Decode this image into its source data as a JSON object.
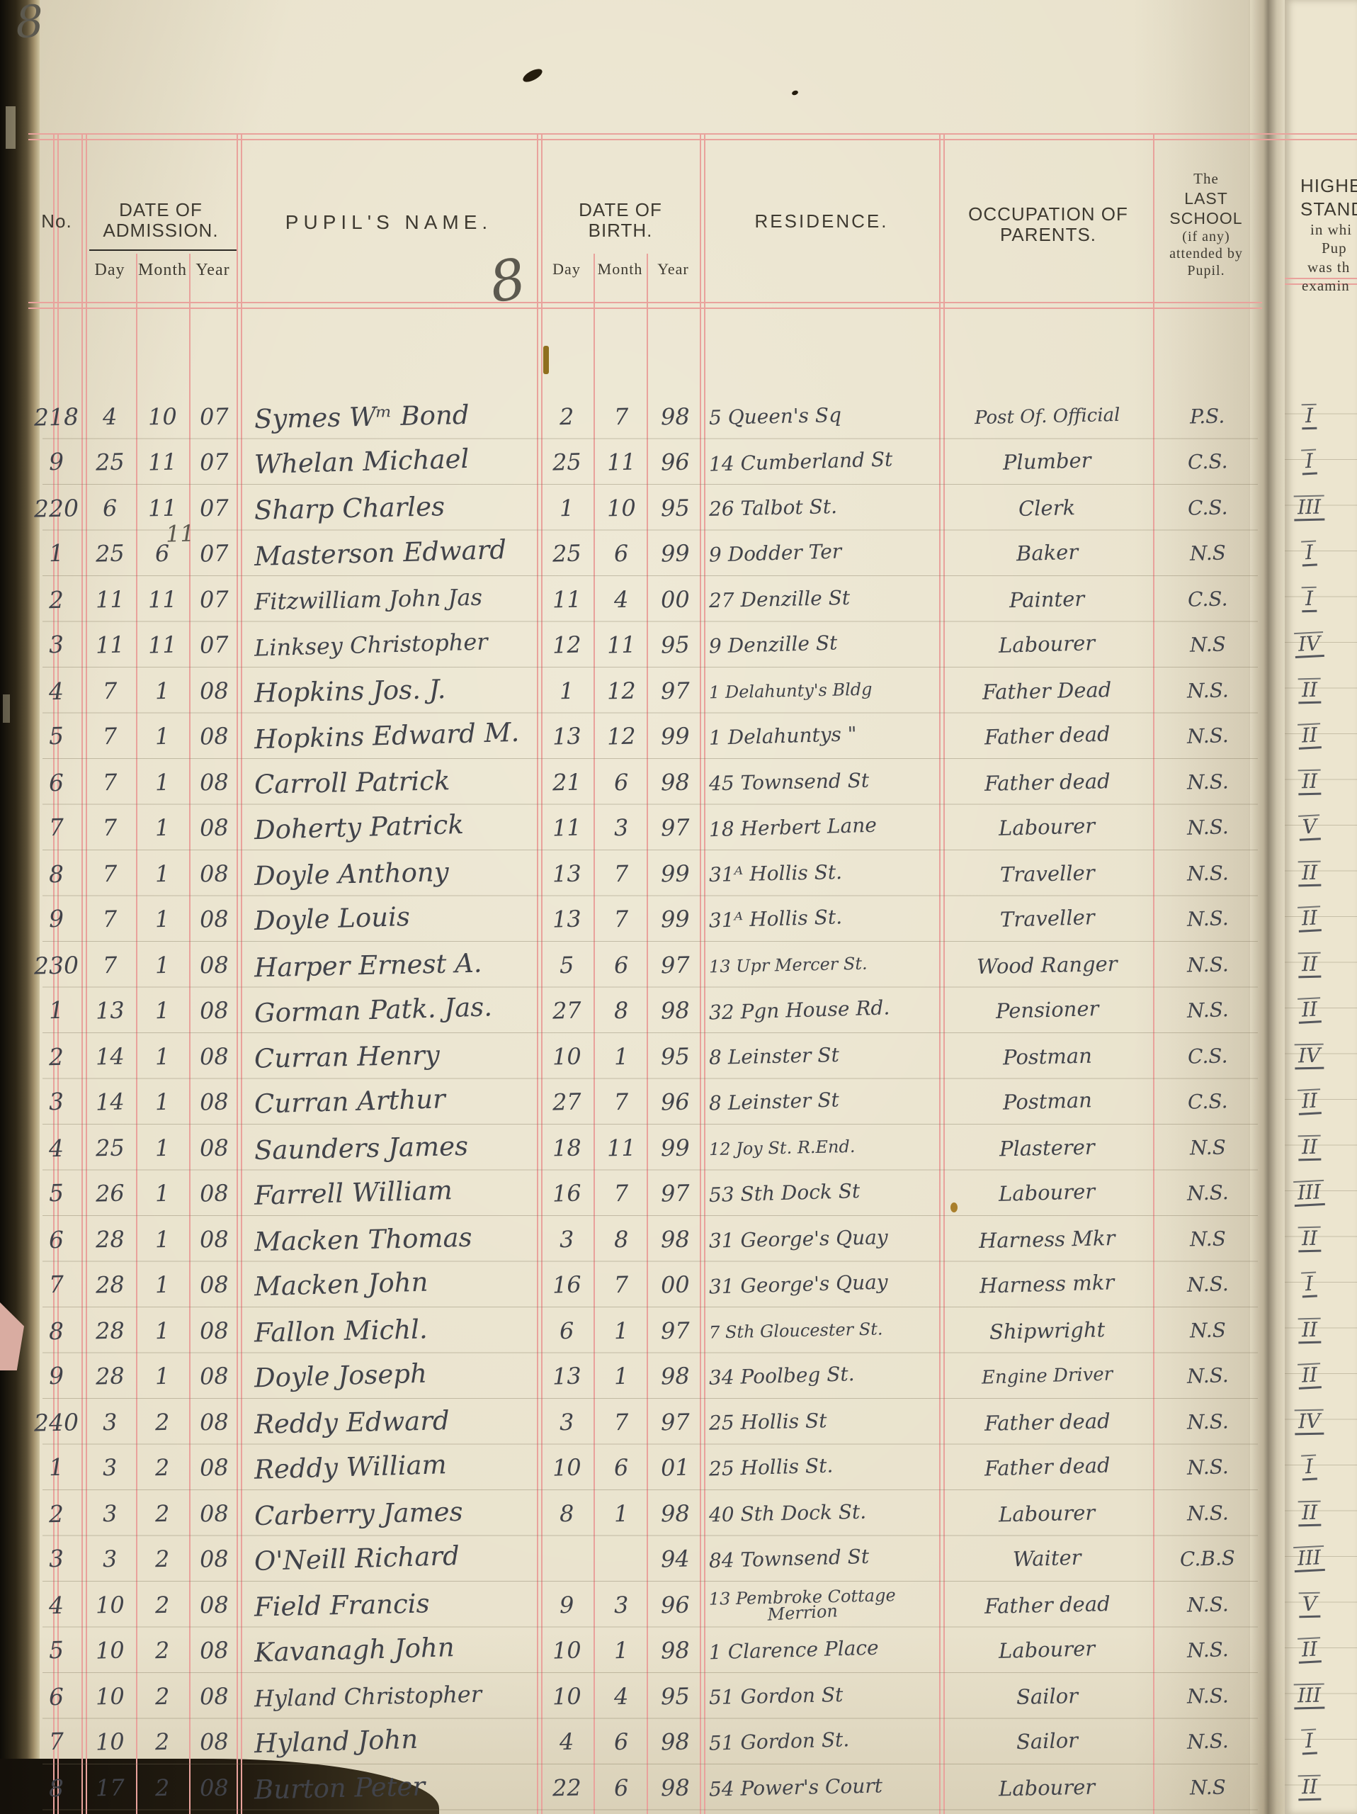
{
  "page": {
    "corner_pencil_number": "8",
    "header_pencil_number": "8",
    "colors": {
      "rule_red": "#e9a29c",
      "ink": "#41434a",
      "pencil": "#5c594f",
      "paper": "#e9e2cc"
    }
  },
  "table": {
    "headers": {
      "no": "No.",
      "admission_line1": "DATE OF",
      "admission_line2": "ADMISSION.",
      "adm_day": "Day",
      "adm_month": "Month",
      "adm_year": "Year",
      "pupil_name": "PUPIL'S  NAME.",
      "birth_line1": "DATE OF",
      "birth_line2": "BIRTH.",
      "birth_day": "Day",
      "birth_month": "Month",
      "birth_year": "Year",
      "residence": "RESIDENCE.",
      "occupation_line1": "OCCUPATION OF",
      "occupation_line2": "PARENTS.",
      "last_school_lines": [
        "The",
        "LAST",
        "SCHOOL",
        "(if any)",
        "attended by",
        "Pupil."
      ],
      "standard_lines": [
        "HIGHE",
        "STAND",
        "in whi",
        "Pup",
        "was th",
        "examin"
      ]
    },
    "rows": [
      {
        "no": "218",
        "ad": "4",
        "am": "10",
        "ay": "07",
        "name": "Symes Wᵐ Bond",
        "bd": "2",
        "bm": "7",
        "by": "98",
        "res": "5 Queen's Sq",
        "occ": "Post Of. Official",
        "sch": "P.S.",
        "std": "I"
      },
      {
        "no": "9",
        "ad": "25",
        "am": "11",
        "ay": "07",
        "name": "Whelan Michael",
        "bd": "25",
        "bm": "11",
        "by": "96",
        "res": "14 Cumberland St",
        "occ": "Plumber",
        "sch": "C.S.",
        "std": "I"
      },
      {
        "no": "220",
        "ad": "6",
        "am": "11",
        "ay": "07",
        "name": "Sharp Charles",
        "bd": "1",
        "bm": "10",
        "by": "95",
        "res": "26 Talbot St.",
        "occ": "Clerk",
        "sch": "C.S.",
        "std": "III"
      },
      {
        "no": "1",
        "ad": "25",
        "am": "6",
        "am_note": "11",
        "ay": "07",
        "name": "Masterson Edward",
        "bd": "25",
        "bm": "6",
        "by": "99",
        "res": "9 Dodder Ter",
        "occ": "Baker",
        "sch": "N.S",
        "std": "I"
      },
      {
        "no": "2",
        "ad": "11",
        "am": "11",
        "ay": "07",
        "name": "Fitzwilliam John Jas",
        "bd": "11",
        "bm": "4",
        "by": "00",
        "res": "27 Denzille St",
        "occ": "Painter",
        "sch": "C.S.",
        "std": "I"
      },
      {
        "no": "3",
        "ad": "11",
        "am": "11",
        "ay": "07",
        "name": "Linksey Christopher",
        "bd": "12",
        "bm": "11",
        "by": "95",
        "res": "9 Denzille St",
        "occ": "Labourer",
        "sch": "N.S",
        "std": "IV"
      },
      {
        "no": "4",
        "ad": "7",
        "am": "1",
        "ay": "08",
        "name": "Hopkins Jos. J.",
        "bd": "1",
        "bm": "12",
        "by": "97",
        "res": "1 Delahunty's Bldg",
        "occ": "Father Dead",
        "sch": "N.S.",
        "std": "II"
      },
      {
        "no": "5",
        "ad": "7",
        "am": "1",
        "ay": "08",
        "name": "Hopkins Edward M.",
        "bd": "13",
        "bm": "12",
        "by": "99",
        "res": "1 Delahuntys  \"",
        "occ": "Father dead",
        "sch": "N.S.",
        "std": "II"
      },
      {
        "no": "6",
        "ad": "7",
        "am": "1",
        "ay": "08",
        "name": "Carroll Patrick",
        "bd": "21",
        "bm": "6",
        "by": "98",
        "res": "45 Townsend St",
        "occ": "Father dead",
        "sch": "N.S.",
        "std": "II"
      },
      {
        "no": "7",
        "ad": "7",
        "am": "1",
        "ay": "08",
        "name": "Doherty Patrick",
        "bd": "11",
        "bm": "3",
        "by": "97",
        "res": "18 Herbert Lane",
        "occ": "Labourer",
        "sch": "N.S.",
        "std": "V"
      },
      {
        "no": "8",
        "ad": "7",
        "am": "1",
        "ay": "08",
        "name": "Doyle Anthony",
        "bd": "13",
        "bm": "7",
        "by": "99",
        "res": "31ᴬ Hollis St.",
        "occ": "Traveller",
        "sch": "N.S.",
        "std": "II"
      },
      {
        "no": "9",
        "ad": "7",
        "am": "1",
        "ay": "08",
        "name": "Doyle Louis",
        "bd": "13",
        "bm": "7",
        "by": "99",
        "res": "31ᴬ Hollis St.",
        "occ": "Traveller",
        "sch": "N.S.",
        "std": "II"
      },
      {
        "no": "230",
        "ad": "7",
        "am": "1",
        "ay": "08",
        "name": "Harper Ernest A.",
        "bd": "5",
        "bm": "6",
        "by": "97",
        "res": "13 Upr Mercer St.",
        "occ": "Wood Ranger",
        "sch": "N.S.",
        "std": "II"
      },
      {
        "no": "1",
        "ad": "13",
        "am": "1",
        "ay": "08",
        "name": "Gorman Patk. Jas.",
        "bd": "27",
        "bm": "8",
        "by": "98",
        "res": "32 Pgn House Rd.",
        "occ": "Pensioner",
        "sch": "N.S.",
        "std": "II"
      },
      {
        "no": "2",
        "ad": "14",
        "am": "1",
        "ay": "08",
        "name": "Curran Henry",
        "bd": "10",
        "bm": "1",
        "by": "95",
        "res": "8 Leinster St",
        "occ": "Postman",
        "sch": "C.S.",
        "std": "IV"
      },
      {
        "no": "3",
        "ad": "14",
        "am": "1",
        "ay": "08",
        "name": "Curran Arthur",
        "bd": "27",
        "bm": "7",
        "by": "96",
        "res": "8 Leinster St",
        "occ": "Postman",
        "sch": "C.S.",
        "std": "II"
      },
      {
        "no": "4",
        "ad": "25",
        "am": "1",
        "ay": "08",
        "name": "Saunders James",
        "bd": "18",
        "bm": "11",
        "by": "99",
        "res": "12 Joy St. R.End.",
        "occ": "Plasterer",
        "sch": "N.S",
        "std": "II"
      },
      {
        "no": "5",
        "ad": "26",
        "am": "1",
        "ay": "08",
        "name": "Farrell William",
        "bd": "16",
        "bm": "7",
        "by": "97",
        "res": "53 Sth Dock St",
        "occ": "Labourer",
        "sch": "N.S.",
        "std": "III"
      },
      {
        "no": "6",
        "ad": "28",
        "am": "1",
        "ay": "08",
        "name": "Macken Thomas",
        "bd": "3",
        "bm": "8",
        "by": "98",
        "res": "31 George's Quay",
        "occ": "Harness Mkr",
        "sch": "N.S",
        "std": "II"
      },
      {
        "no": "7",
        "ad": "28",
        "am": "1",
        "ay": "08",
        "name": "Macken John",
        "bd": "16",
        "bm": "7",
        "by": "00",
        "res": "31 George's Quay",
        "occ": "Harness mkr",
        "sch": "N.S.",
        "std": "I"
      },
      {
        "no": "8",
        "ad": "28",
        "am": "1",
        "ay": "08",
        "name": "Fallon Michl.",
        "bd": "6",
        "bm": "1",
        "by": "97",
        "res": "7 Sth Gloucester St.",
        "occ": "Shipwright",
        "sch": "N.S",
        "std": "II"
      },
      {
        "no": "9",
        "ad": "28",
        "am": "1",
        "ay": "08",
        "name": "Doyle Joseph",
        "bd": "13",
        "bm": "1",
        "by": "98",
        "res": "34 Poolbeg St.",
        "occ": "Engine Driver",
        "sch": "N.S.",
        "std": "II"
      },
      {
        "no": "240",
        "ad": "3",
        "am": "2",
        "ay": "08",
        "name": "Reddy Edward",
        "bd": "3",
        "bm": "7",
        "by": "97",
        "res": "25 Hollis St",
        "occ": "Father dead",
        "sch": "N.S.",
        "std": "IV"
      },
      {
        "no": "1",
        "ad": "3",
        "am": "2",
        "ay": "08",
        "name": "Reddy William",
        "bd": "10",
        "bm": "6",
        "by": "01",
        "res": "25 Hollis St.",
        "occ": "Father dead",
        "sch": "N.S.",
        "std": "I"
      },
      {
        "no": "2",
        "ad": "3",
        "am": "2",
        "ay": "08",
        "name": "Carberry James",
        "bd": "8",
        "bm": "1",
        "by": "98",
        "res": "40 Sth Dock St.",
        "occ": "Labourer",
        "sch": "N.S.",
        "std": "II"
      },
      {
        "no": "3",
        "ad": "3",
        "am": "2",
        "ay": "08",
        "name": "O'Neill Richard",
        "bd": "",
        "bm": "",
        "by": "94",
        "res": "84 Townsend St",
        "occ": "Waiter",
        "sch": "C.B.S",
        "std": "III"
      },
      {
        "no": "4",
        "ad": "10",
        "am": "2",
        "ay": "08",
        "name": "Field Francis",
        "bd": "9",
        "bm": "3",
        "by": "96",
        "res": "13 Pembroke Cottage",
        "res2": "Merrion",
        "occ": "Father dead",
        "sch": "N.S.",
        "std": "V"
      },
      {
        "no": "5",
        "ad": "10",
        "am": "2",
        "ay": "08",
        "name": "Kavanagh John",
        "bd": "10",
        "bm": "1",
        "by": "98",
        "res": "1 Clarence Place",
        "occ": "Labourer",
        "sch": "N.S.",
        "std": "II"
      },
      {
        "no": "6",
        "ad": "10",
        "am": "2",
        "ay": "08",
        "name": "Hyland Christopher",
        "bd": "10",
        "bm": "4",
        "by": "95",
        "res": "51 Gordon St",
        "occ": "Sailor",
        "sch": "N.S.",
        "std": "III"
      },
      {
        "no": "7",
        "ad": "10",
        "am": "2",
        "ay": "08",
        "name": "Hyland John",
        "bd": "4",
        "bm": "6",
        "by": "98",
        "res": "51 Gordon St.",
        "occ": "Sailor",
        "sch": "N.S.",
        "std": "I"
      },
      {
        "no": "8",
        "ad": "17",
        "am": "2",
        "ay": "08",
        "name": "Burton Peter",
        "bd": "22",
        "bm": "6",
        "by": "98",
        "res": "54 Power's Court",
        "occ": "Labourer",
        "sch": "N.S",
        "std": "II"
      }
    ]
  }
}
